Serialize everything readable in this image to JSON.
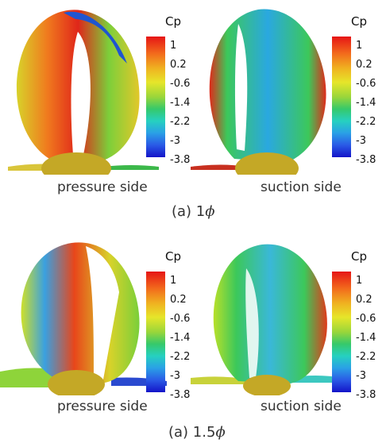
{
  "legend": {
    "title": "Cp",
    "ticks": [
      "1",
      "0.2",
      "-0.6",
      "-1.4",
      "-2.2",
      "-3",
      "-3.8"
    ],
    "colors": {
      "high": "#e61515",
      "mid": "#36c96a",
      "low": "#1414c8"
    }
  },
  "labels": {
    "pressure_side": "pressure side",
    "suction_side": "suction side"
  },
  "captions": {
    "top_prefix": "(a) 1",
    "top_symbol": "ϕ",
    "bottom_prefix": "(a) 1.5",
    "bottom_symbol": "ϕ"
  }
}
